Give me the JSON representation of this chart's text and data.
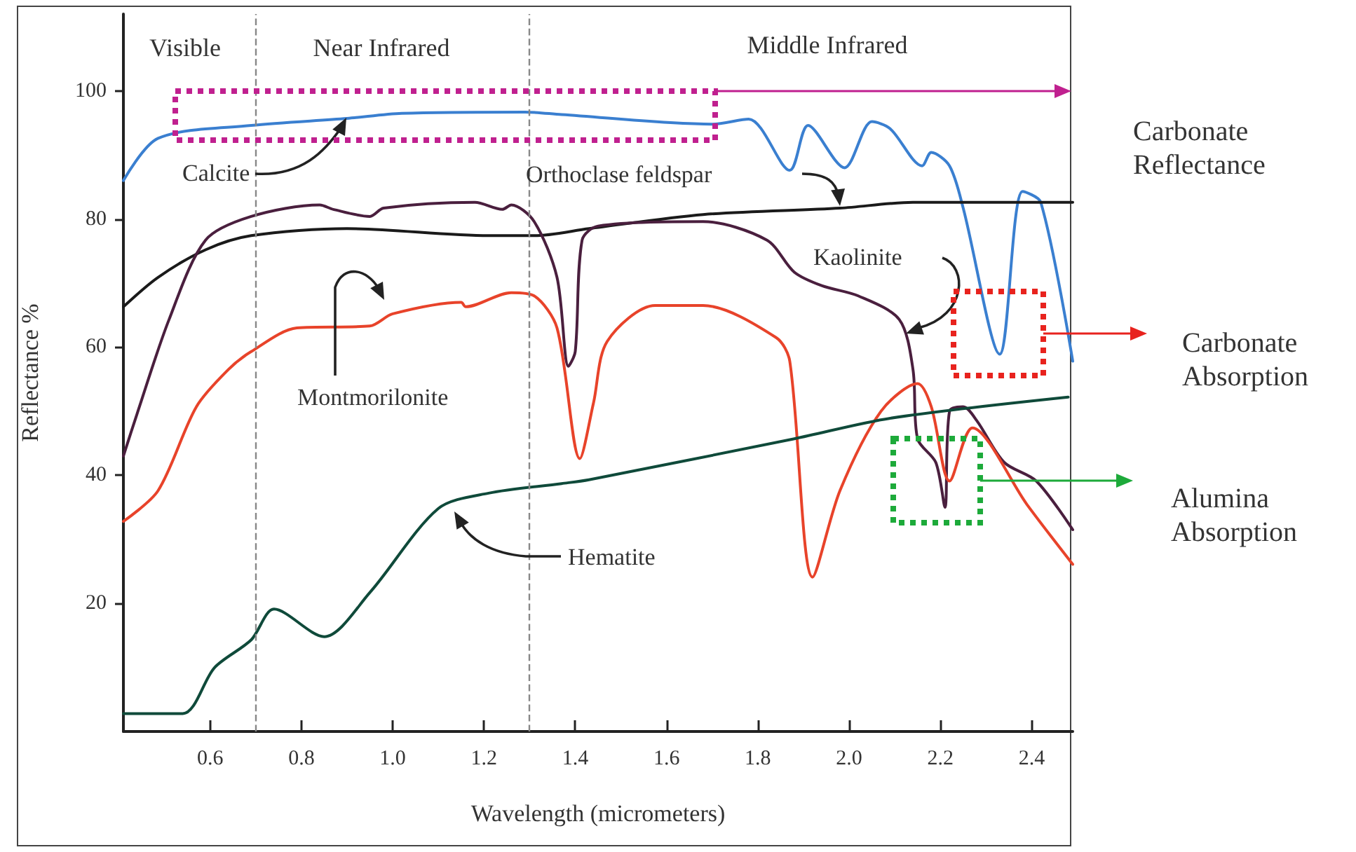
{
  "chart_data": {
    "type": "line",
    "xlabel": "Wavelength (micrometers)",
    "ylabel": "Reflectance %",
    "xlim": [
      0.41,
      2.49
    ],
    "ylim": [
      0,
      112
    ],
    "xticks": [
      0.6,
      0.8,
      {
        "value": 1,
        "label": "1.0"
      },
      1.2,
      1.4,
      1.6,
      1.8,
      {
        "value": 2,
        "label": "2.0"
      },
      2.2,
      2.4
    ],
    "yticks": [
      20,
      40,
      60,
      80,
      100
    ],
    "grid": false,
    "legend": false,
    "marker": "none",
    "line_style": "solid",
    "ref_lines": [
      {
        "axis": "x",
        "value": 0.7,
        "color": "#888888",
        "line_style": "dashed"
      },
      {
        "axis": "x",
        "value": 1.3,
        "color": "#888888",
        "line_style": "dashed"
      }
    ],
    "annotations": [
      "Visible",
      "Near Infrared",
      "Middle Infrared",
      "Carbonate Reflectance",
      "Carbonate Absorption",
      "Alumina Absorption"
    ],
    "series": [
      {
        "name": "Calcite",
        "color": "#3a7fd0",
        "x": [
          0.41,
          0.486,
          0.69,
          0.9,
          1.02,
          1.29,
          1.37,
          1.7,
          1.78,
          1.87,
          1.91,
          1.99,
          2.05,
          2.09,
          2.16,
          2.18,
          2.22,
          2.25,
          2.33,
          2.38,
          2.42,
          2.49
        ],
        "values": [
          86,
          92.6,
          94.6,
          95.7,
          96.5,
          96.7,
          96.3,
          94.8,
          95.6,
          87.6,
          94.6,
          88,
          95.2,
          94.1,
          88.3,
          90.4,
          88.3,
          81.7,
          58.9,
          84.3,
          82.6,
          57.8
        ]
      },
      {
        "name": "Orthoclase feldspar",
        "color": "#1a1a1a",
        "x": [
          0.41,
          0.486,
          0.59,
          0.69,
          0.9,
          1.21,
          1.31,
          1.43,
          1.68,
          1.98,
          2.14,
          2.49
        ],
        "values": [
          66.3,
          70.9,
          75.2,
          77.4,
          78.5,
          77.4,
          77.4,
          78.5,
          80.7,
          81.7,
          82.6,
          82.6
        ]
      },
      {
        "name": "Kaolinite",
        "color": "#4a1f3e",
        "x": [
          0.41,
          0.44,
          0.51,
          0.59,
          0.69,
          0.84,
          0.87,
          0.95,
          0.98,
          1.18,
          1.24,
          1.26,
          1.31,
          1.36,
          1.385,
          1.4,
          1.415,
          1.45,
          1.68,
          1.82,
          1.88,
          1.94,
          2.02,
          2.11,
          2.14,
          2.15,
          2.19,
          2.21,
          2.22,
          2.25,
          2.28,
          2.34,
          2.41,
          2.49
        ],
        "values": [
          43,
          49.6,
          64.3,
          76.7,
          80.4,
          82.2,
          81.5,
          80.4,
          81.7,
          82.6,
          81.5,
          82.2,
          79.6,
          70.9,
          57,
          59.3,
          76.7,
          78.9,
          79.6,
          76.7,
          71.7,
          69.6,
          68,
          64.3,
          56.5,
          45.7,
          42,
          35,
          50,
          50.7,
          48.5,
          42,
          39.1,
          31.5
        ]
      },
      {
        "name": "Montmorilonite",
        "color": "#e8432a",
        "x": [
          0.41,
          0.486,
          0.57,
          0.64,
          0.69,
          0.79,
          0.95,
          1,
          1.15,
          1.16,
          1.26,
          1.31,
          1.36,
          1.41,
          1.44,
          1.47,
          1.575,
          1.68,
          1.84,
          1.87,
          1.92,
          1.98,
          2.07,
          2.15,
          2.18,
          2.22,
          2.27,
          2.39,
          2.49
        ],
        "values": [
          32.8,
          37.6,
          50.7,
          56.5,
          59.3,
          63,
          63.3,
          65.2,
          67,
          66.3,
          68.5,
          68,
          63,
          42.6,
          51.3,
          60.9,
          66.5,
          66.5,
          61.5,
          57.8,
          24.1,
          37.6,
          50,
          54.3,
          50.7,
          39.1,
          47.4,
          35.4,
          26.1
        ]
      },
      {
        "name": "Hematite",
        "color": "#0f4a3a",
        "x": [
          0.41,
          0.54,
          0.61,
          0.69,
          0.74,
          0.85,
          0.95,
          1.1,
          1.21,
          1.37,
          1.43,
          1.88,
          2.09,
          2.48
        ],
        "values": [
          2.8,
          2.8,
          10,
          14.3,
          19.1,
          14.8,
          21.7,
          34.8,
          37.2,
          38.7,
          39.3,
          45.7,
          48.9,
          52.2
        ]
      }
    ]
  }
}
